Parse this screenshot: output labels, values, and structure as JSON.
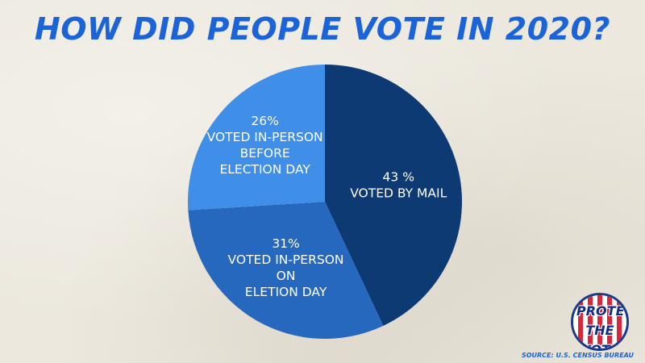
{
  "title": "HOW DID PEOPLE VOTE IN 2020?",
  "source": "SOURCE: U.S. CENSUS BUREAU",
  "logo": {
    "line1": "PROTECT",
    "line2": "THE VOTE"
  },
  "colors": {
    "background": "#ece8de",
    "title": "#1a63d8",
    "mail": "#0e3a74",
    "in_person_election_day": "#2668bd",
    "in_person_before": "#3f8ee8"
  },
  "chart_data": {
    "type": "pie",
    "title": "HOW DID PEOPLE VOTE IN 2020?",
    "slices": [
      {
        "label_lines": [
          "43 %",
          "VOTED BY MAIL"
        ],
        "value": 43,
        "color": "#0e3a74"
      },
      {
        "label_lines": [
          "31%",
          "VOTED IN-PERSON",
          "ON",
          "ELETION DAY"
        ],
        "value": 31,
        "color": "#2668bd"
      },
      {
        "label_lines": [
          "26%",
          "VOTED IN-PERSON",
          "BEFORE",
          "ELECTION DAY"
        ],
        "value": 26,
        "color": "#3f8ee8"
      }
    ],
    "start": "12 o'clock",
    "direction": "clockwise",
    "legend": "none"
  }
}
